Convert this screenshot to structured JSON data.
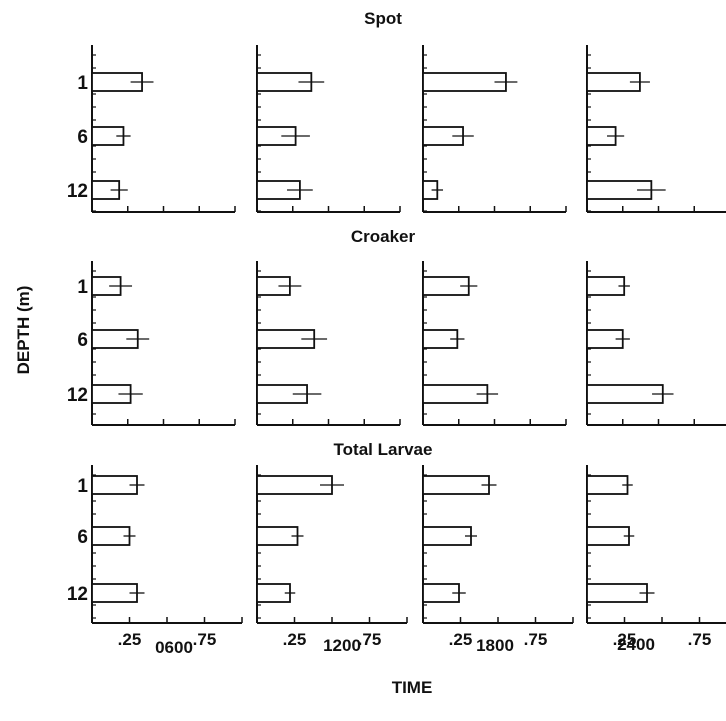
{
  "chart_data": {
    "type": "bar",
    "orientation": "horizontal",
    "layout": "small-multiples-grid",
    "xlabel": "TIME",
    "ylabel": "DEPTH (m)",
    "depths": [
      "1",
      "6",
      "12"
    ],
    "x_ticks": [
      ".25",
      ".75"
    ],
    "x_tick_values": [
      0.25,
      0.75
    ],
    "xlim": [
      0,
      1.0
    ],
    "times": [
      "0600",
      "1200",
      "1800",
      "2400"
    ],
    "error_bars": true,
    "colors": {
      "bar_fill": "#ffffff",
      "stroke": "#111111"
    },
    "groups": [
      {
        "name": "Spot",
        "values": [
          [
            0.35,
            0.22,
            0.19
          ],
          [
            0.38,
            0.27,
            0.3
          ],
          [
            0.58,
            0.28,
            0.1
          ],
          [
            0.37,
            0.2,
            0.45
          ]
        ],
        "errors": [
          [
            0.16,
            0.1,
            0.12
          ],
          [
            0.18,
            0.2,
            0.18
          ],
          [
            0.16,
            0.15,
            0.08
          ],
          [
            0.14,
            0.12,
            0.2
          ]
        ]
      },
      {
        "name": "Croaker",
        "values": [
          [
            0.2,
            0.32,
            0.27
          ],
          [
            0.23,
            0.4,
            0.35
          ],
          [
            0.32,
            0.24,
            0.45
          ],
          [
            0.26,
            0.25,
            0.53
          ]
        ],
        "errors": [
          [
            0.16,
            0.16,
            0.17
          ],
          [
            0.16,
            0.18,
            0.2
          ],
          [
            0.12,
            0.1,
            0.15
          ],
          [
            0.08,
            0.1,
            0.15
          ]
        ]
      },
      {
        "name": "Total Larvae",
        "values": [
          [
            0.3,
            0.25,
            0.3
          ],
          [
            0.5,
            0.27,
            0.22
          ],
          [
            0.44,
            0.32,
            0.24
          ],
          [
            0.27,
            0.28,
            0.4
          ]
        ],
        "errors": [
          [
            0.1,
            0.08,
            0.1
          ],
          [
            0.16,
            0.08,
            0.07
          ],
          [
            0.1,
            0.08,
            0.09
          ],
          [
            0.07,
            0.07,
            0.1
          ]
        ]
      }
    ]
  }
}
